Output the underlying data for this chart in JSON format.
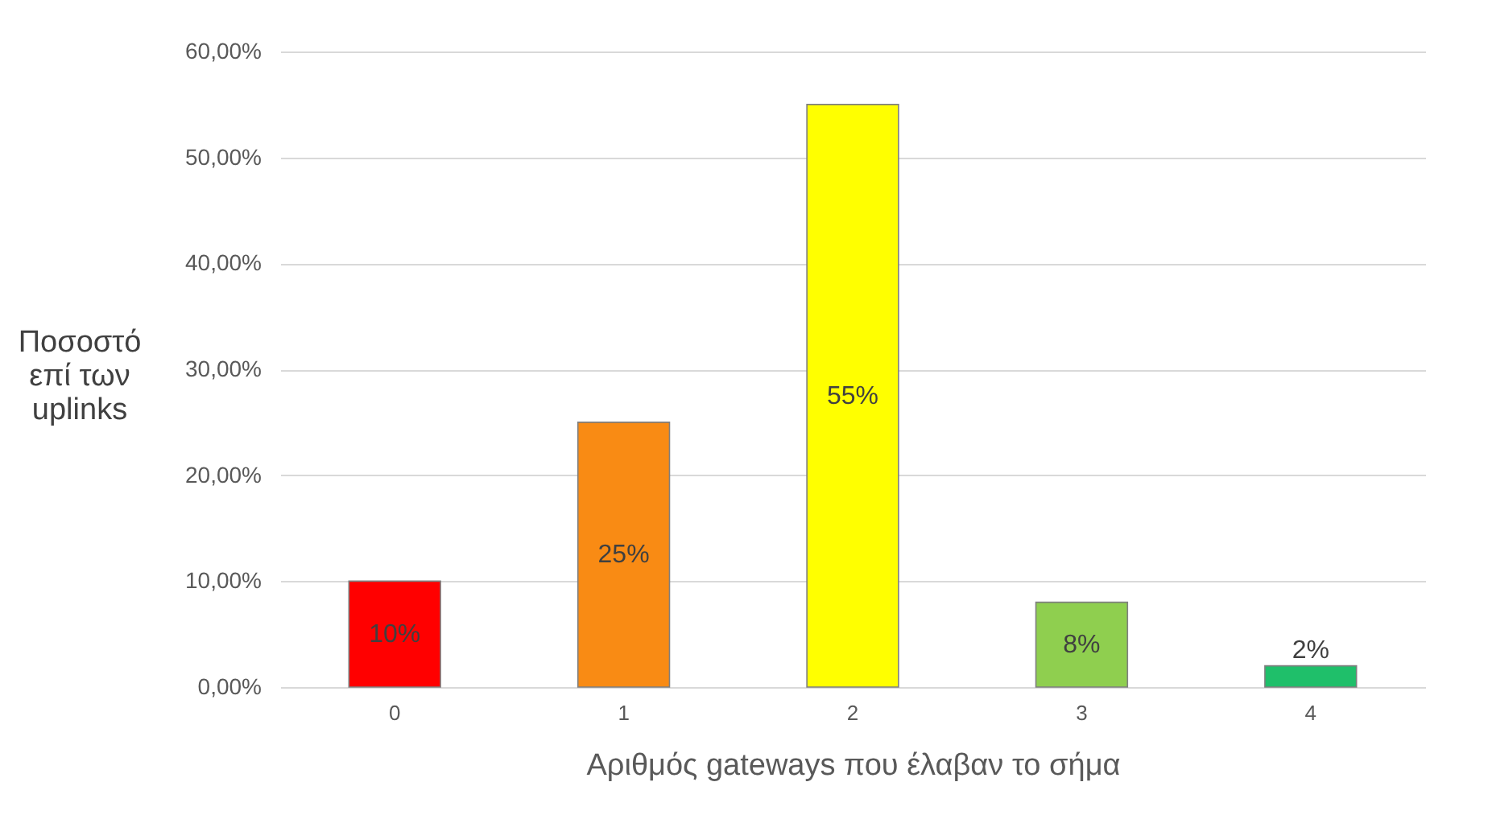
{
  "chart_data": {
    "type": "bar",
    "xlabel": "Αριθμός gateways που έλαβαν το σήμα",
    "ylabel": "Ποσοστό επί των uplinks",
    "categories": [
      "0",
      "1",
      "2",
      "3",
      "4"
    ],
    "values": [
      10,
      25,
      55,
      8,
      2
    ],
    "colors": [
      "#ff0000",
      "#f98b14",
      "#ffff00",
      "#8fcf4f",
      "#1fbf6a"
    ],
    "value_labels": [
      "10%",
      "25%",
      "55%",
      "8%",
      "2%"
    ],
    "ylim": [
      0,
      60
    ],
    "yticks": [
      {
        "value": 0,
        "label": "0,00%"
      },
      {
        "value": 10,
        "label": "10,00%"
      },
      {
        "value": 20,
        "label": "20,00%"
      },
      {
        "value": 30,
        "label": "30,00%"
      },
      {
        "value": 40,
        "label": "40,00%"
      },
      {
        "value": 50,
        "label": "50,00%"
      },
      {
        "value": 60,
        "label": "60,00%"
      }
    ],
    "grid": "y"
  }
}
